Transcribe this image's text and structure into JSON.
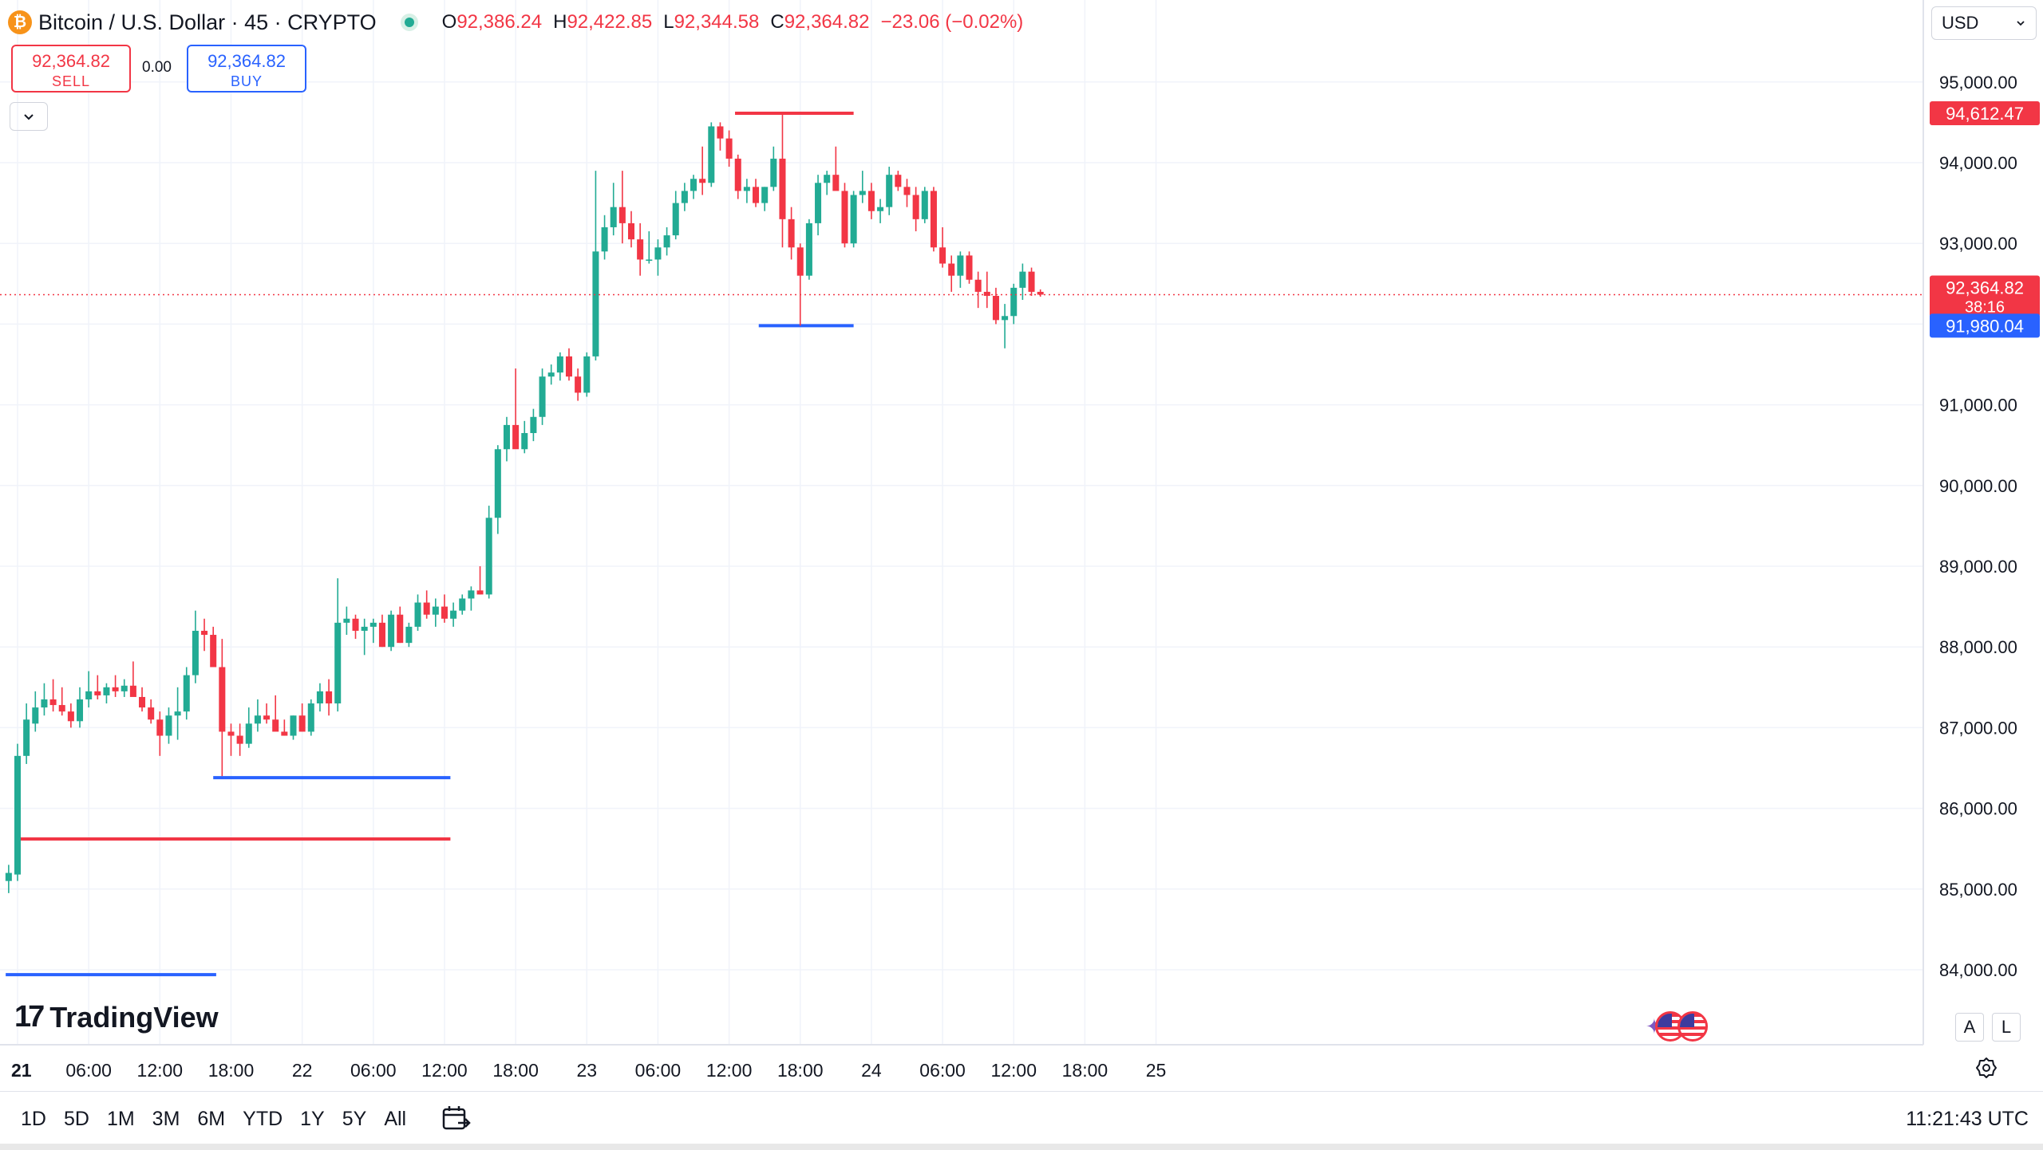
{
  "header": {
    "title": "Bitcoin / U.S. Dollar · 45 · CRYPTO",
    "ohlc": [
      {
        "label": "O",
        "value": "92,386.24"
      },
      {
        "label": "H",
        "value": "92,422.85"
      },
      {
        "label": "L",
        "value": "92,344.58"
      },
      {
        "label": "C",
        "value": "92,364.82"
      }
    ],
    "change": "−23.06 (−0.02%)"
  },
  "trade": {
    "sell_price": "92,364.82",
    "sell_label": "SELL",
    "spread": "0.00",
    "buy_price": "92,364.82",
    "buy_label": "BUY"
  },
  "currency": "USD",
  "brand": "TradingView",
  "scale_buttons": [
    "A",
    "L"
  ],
  "bottom_bar": {
    "ranges": [
      "1D",
      "5D",
      "1M",
      "3M",
      "6M",
      "YTD",
      "1Y",
      "5Y",
      "All"
    ],
    "clock": "11:21:43 UTC"
  },
  "colors": {
    "up": "#22ab94",
    "down": "#f23645",
    "resistance": "#f23645",
    "support": "#2962ff"
  },
  "chart_data": {
    "type": "candlestick",
    "title": "Bitcoin / U.S. Dollar · 45 · CRYPTO",
    "timeframe": "45",
    "y_axis": {
      "ticks": [
        84000,
        85000,
        86000,
        87000,
        88000,
        89000,
        90000,
        91000,
        92000,
        93000,
        94000,
        95000
      ],
      "tick_labels": [
        "84,000.00",
        "85,000.00",
        "86,000.00",
        "87,000.00",
        "88,000.00",
        "89,000.00",
        "90,000.00",
        "91,000.00",
        "92,000.00",
        "93,000.00",
        "94,000.00",
        "95,000.00"
      ],
      "range": [
        83700,
        95450
      ],
      "position": "right"
    },
    "x_axis": {
      "ticks": [
        "21",
        "06:00",
        "12:00",
        "18:00",
        "22",
        "06:00",
        "12:00",
        "18:00",
        "23",
        "06:00",
        "12:00",
        "18:00",
        "24",
        "06:00",
        "12:00",
        "18:00",
        "25"
      ],
      "bold_ticks": [
        "21"
      ],
      "start": "21 00:00",
      "end": "25 00:00"
    },
    "grid": true,
    "price_labels": [
      {
        "text": "94,612.47",
        "value": 94612.47,
        "kind": "resistance"
      },
      {
        "text": "92,364.82",
        "value": 92364.82,
        "kind": "last",
        "sub": "38:16"
      },
      {
        "text": "91,980.04",
        "value": 91980.04,
        "kind": "support"
      }
    ],
    "horizontal_lines": [
      {
        "kind": "resistance",
        "value": 94612.47,
        "from": "22 / 23 12:30",
        "to": "23 / 23 22:30"
      },
      {
        "kind": "support",
        "value": 91980.04,
        "from": "23 / 23 14:30",
        "to": "23 / 23 22:30"
      },
      {
        "kind": "support",
        "value": 86380,
        "from": "21 / 21 16:30",
        "to": "22 / 22 12:30"
      },
      {
        "kind": "resistance",
        "value": 85620,
        "from": "21 / 21 00:00",
        "to": "22 / 22 12:30"
      },
      {
        "kind": "support",
        "value": 83940,
        "from": "21 / 20 23:00",
        "to": "21 / 21 16:45"
      }
    ],
    "candles": [
      {
        "o": 85100,
        "h": 85300,
        "l": 84950,
        "c": 85200
      },
      {
        "o": 85180,
        "h": 86800,
        "l": 85100,
        "c": 86650
      },
      {
        "o": 86650,
        "h": 87300,
        "l": 86550,
        "c": 87100
      },
      {
        "o": 87050,
        "h": 87450,
        "l": 86950,
        "c": 87250
      },
      {
        "o": 87250,
        "h": 87550,
        "l": 87150,
        "c": 87350
      },
      {
        "o": 87350,
        "h": 87600,
        "l": 87200,
        "c": 87280
      },
      {
        "o": 87280,
        "h": 87500,
        "l": 87150,
        "c": 87200
      },
      {
        "o": 87200,
        "h": 87300,
        "l": 87000,
        "c": 87080
      },
      {
        "o": 87080,
        "h": 87500,
        "l": 87000,
        "c": 87350
      },
      {
        "o": 87350,
        "h": 87700,
        "l": 87250,
        "c": 87450
      },
      {
        "o": 87450,
        "h": 87650,
        "l": 87350,
        "c": 87400
      },
      {
        "o": 87400,
        "h": 87550,
        "l": 87300,
        "c": 87500
      },
      {
        "o": 87500,
        "h": 87650,
        "l": 87380,
        "c": 87450
      },
      {
        "o": 87450,
        "h": 87600,
        "l": 87380,
        "c": 87520
      },
      {
        "o": 87520,
        "h": 87820,
        "l": 87450,
        "c": 87380
      },
      {
        "o": 87380,
        "h": 87500,
        "l": 87200,
        "c": 87250
      },
      {
        "o": 87250,
        "h": 87350,
        "l": 87050,
        "c": 87100
      },
      {
        "o": 87100,
        "h": 87200,
        "l": 86650,
        "c": 86900
      },
      {
        "o": 86900,
        "h": 87250,
        "l": 86800,
        "c": 87150
      },
      {
        "o": 87150,
        "h": 87500,
        "l": 86850,
        "c": 87200
      },
      {
        "o": 87200,
        "h": 87750,
        "l": 87100,
        "c": 87650
      },
      {
        "o": 87650,
        "h": 88450,
        "l": 87550,
        "c": 88200
      },
      {
        "o": 88200,
        "h": 88350,
        "l": 87950,
        "c": 88150
      },
      {
        "o": 88150,
        "h": 88250,
        "l": 87750,
        "c": 87750
      },
      {
        "o": 87750,
        "h": 88100,
        "l": 86400,
        "c": 86950
      },
      {
        "o": 86950,
        "h": 87050,
        "l": 86650,
        "c": 86900
      },
      {
        "o": 86900,
        "h": 87050,
        "l": 86650,
        "c": 86800
      },
      {
        "o": 86800,
        "h": 87250,
        "l": 86750,
        "c": 87050
      },
      {
        "o": 87050,
        "h": 87350,
        "l": 86950,
        "c": 87150
      },
      {
        "o": 87150,
        "h": 87300,
        "l": 87050,
        "c": 87100
      },
      {
        "o": 87100,
        "h": 87400,
        "l": 87000,
        "c": 86950
      },
      {
        "o": 86950,
        "h": 87100,
        "l": 86900,
        "c": 86900
      },
      {
        "o": 86900,
        "h": 87150,
        "l": 86850,
        "c": 87150
      },
      {
        "o": 87150,
        "h": 87300,
        "l": 86950,
        "c": 86950
      },
      {
        "o": 86950,
        "h": 87350,
        "l": 86900,
        "c": 87300
      },
      {
        "o": 87300,
        "h": 87550,
        "l": 87200,
        "c": 87450
      },
      {
        "o": 87450,
        "h": 87600,
        "l": 87150,
        "c": 87300
      },
      {
        "o": 87300,
        "h": 88850,
        "l": 87200,
        "c": 88300
      },
      {
        "o": 88300,
        "h": 88500,
        "l": 88150,
        "c": 88350
      },
      {
        "o": 88350,
        "h": 88400,
        "l": 88100,
        "c": 88200
      },
      {
        "o": 88200,
        "h": 88350,
        "l": 87900,
        "c": 88250
      },
      {
        "o": 88250,
        "h": 88350,
        "l": 88050,
        "c": 88300
      },
      {
        "o": 88300,
        "h": 88400,
        "l": 88000,
        "c": 88000
      },
      {
        "o": 88000,
        "h": 88450,
        "l": 87950,
        "c": 88400
      },
      {
        "o": 88400,
        "h": 88500,
        "l": 88050,
        "c": 88050
      },
      {
        "o": 88050,
        "h": 88300,
        "l": 88000,
        "c": 88250
      },
      {
        "o": 88250,
        "h": 88650,
        "l": 88200,
        "c": 88550
      },
      {
        "o": 88550,
        "h": 88700,
        "l": 88350,
        "c": 88400
      },
      {
        "o": 88400,
        "h": 88600,
        "l": 88250,
        "c": 88500
      },
      {
        "o": 88500,
        "h": 88650,
        "l": 88300,
        "c": 88350
      },
      {
        "o": 88350,
        "h": 88550,
        "l": 88250,
        "c": 88450
      },
      {
        "o": 88450,
        "h": 88650,
        "l": 88400,
        "c": 88600
      },
      {
        "o": 88600,
        "h": 88750,
        "l": 88450,
        "c": 88700
      },
      {
        "o": 88700,
        "h": 89000,
        "l": 88650,
        "c": 88650
      },
      {
        "o": 88650,
        "h": 89750,
        "l": 88600,
        "c": 89600
      },
      {
        "o": 89600,
        "h": 90500,
        "l": 89400,
        "c": 90450
      },
      {
        "o": 90450,
        "h": 90850,
        "l": 90300,
        "c": 90750
      },
      {
        "o": 90750,
        "h": 91450,
        "l": 90500,
        "c": 90450
      },
      {
        "o": 90450,
        "h": 90800,
        "l": 90400,
        "c": 90650
      },
      {
        "o": 90650,
        "h": 90950,
        "l": 90550,
        "c": 90850
      },
      {
        "o": 90850,
        "h": 91450,
        "l": 90750,
        "c": 91350
      },
      {
        "o": 91350,
        "h": 91500,
        "l": 91250,
        "c": 91400
      },
      {
        "o": 91400,
        "h": 91650,
        "l": 91300,
        "c": 91600
      },
      {
        "o": 91600,
        "h": 91700,
        "l": 91300,
        "c": 91350
      },
      {
        "o": 91350,
        "h": 91450,
        "l": 91050,
        "c": 91150
      },
      {
        "o": 91150,
        "h": 91650,
        "l": 91100,
        "c": 91600
      },
      {
        "o": 91600,
        "h": 93900,
        "l": 91550,
        "c": 92900
      },
      {
        "o": 92900,
        "h": 93350,
        "l": 92800,
        "c": 93200
      },
      {
        "o": 93200,
        "h": 93750,
        "l": 93100,
        "c": 93450
      },
      {
        "o": 93450,
        "h": 93900,
        "l": 93000,
        "c": 93250
      },
      {
        "o": 93250,
        "h": 93400,
        "l": 92950,
        "c": 93050
      },
      {
        "o": 93050,
        "h": 93250,
        "l": 92600,
        "c": 92800
      },
      {
        "o": 92800,
        "h": 93150,
        "l": 92750,
        "c": 92800
      },
      {
        "o": 92800,
        "h": 93050,
        "l": 92600,
        "c": 92950
      },
      {
        "o": 92950,
        "h": 93200,
        "l": 92850,
        "c": 93100
      },
      {
        "o": 93100,
        "h": 93650,
        "l": 93050,
        "c": 93500
      },
      {
        "o": 93500,
        "h": 93750,
        "l": 93400,
        "c": 93650
      },
      {
        "o": 93650,
        "h": 93850,
        "l": 93550,
        "c": 93800
      },
      {
        "o": 93800,
        "h": 94200,
        "l": 93600,
        "c": 93750
      },
      {
        "o": 93750,
        "h": 94500,
        "l": 93700,
        "c": 94450
      },
      {
        "o": 94450,
        "h": 94500,
        "l": 94150,
        "c": 94300
      },
      {
        "o": 94300,
        "h": 94400,
        "l": 93950,
        "c": 94050
      },
      {
        "o": 94050,
        "h": 94100,
        "l": 93550,
        "c": 93650
      },
      {
        "o": 93650,
        "h": 93800,
        "l": 93500,
        "c": 93700
      },
      {
        "o": 93700,
        "h": 93800,
        "l": 93450,
        "c": 93500
      },
      {
        "o": 93500,
        "h": 93700,
        "l": 93400,
        "c": 93700
      },
      {
        "o": 93700,
        "h": 94200,
        "l": 93650,
        "c": 94050
      },
      {
        "o": 94050,
        "h": 94612,
        "l": 92950,
        "c": 93300
      },
      {
        "o": 93300,
        "h": 93450,
        "l": 92800,
        "c": 92950
      },
      {
        "o": 92950,
        "h": 93000,
        "l": 91980,
        "c": 92600
      },
      {
        "o": 92600,
        "h": 93300,
        "l": 92550,
        "c": 93250
      },
      {
        "o": 93250,
        "h": 93850,
        "l": 93100,
        "c": 93750
      },
      {
        "o": 93750,
        "h": 93900,
        "l": 93600,
        "c": 93850
      },
      {
        "o": 93850,
        "h": 94200,
        "l": 93700,
        "c": 93650
      },
      {
        "o": 93650,
        "h": 93750,
        "l": 92950,
        "c": 93000
      },
      {
        "o": 93000,
        "h": 93650,
        "l": 92950,
        "c": 93600
      },
      {
        "o": 93600,
        "h": 93900,
        "l": 93500,
        "c": 93650
      },
      {
        "o": 93650,
        "h": 93750,
        "l": 93300,
        "c": 93400
      },
      {
        "o": 93400,
        "h": 93550,
        "l": 93250,
        "c": 93450
      },
      {
        "o": 93450,
        "h": 93950,
        "l": 93350,
        "c": 93850
      },
      {
        "o": 93850,
        "h": 93900,
        "l": 93650,
        "c": 93700
      },
      {
        "o": 93700,
        "h": 93800,
        "l": 93450,
        "c": 93600
      },
      {
        "o": 93600,
        "h": 93700,
        "l": 93150,
        "c": 93300
      },
      {
        "o": 93300,
        "h": 93700,
        "l": 93250,
        "c": 93650
      },
      {
        "o": 93650,
        "h": 93700,
        "l": 92900,
        "c": 92950
      },
      {
        "o": 92950,
        "h": 93200,
        "l": 92700,
        "c": 92750
      },
      {
        "o": 92750,
        "h": 92850,
        "l": 92400,
        "c": 92600
      },
      {
        "o": 92600,
        "h": 92900,
        "l": 92450,
        "c": 92850
      },
      {
        "o": 92850,
        "h": 92900,
        "l": 92500,
        "c": 92550
      },
      {
        "o": 92550,
        "h": 92650,
        "l": 92200,
        "c": 92400
      },
      {
        "o": 92400,
        "h": 92650,
        "l": 92200,
        "c": 92350
      },
      {
        "o": 92350,
        "h": 92450,
        "l": 92000,
        "c": 92050
      },
      {
        "o": 92050,
        "h": 92250,
        "l": 91700,
        "c": 92100
      },
      {
        "o": 92100,
        "h": 92500,
        "l": 92000,
        "c": 92450
      },
      {
        "o": 92450,
        "h": 92750,
        "l": 92300,
        "c": 92650
      },
      {
        "o": 92650,
        "h": 92700,
        "l": 92350,
        "c": 92400
      },
      {
        "o": 92400,
        "h": 92430,
        "l": 92340,
        "c": 92365
      }
    ]
  }
}
